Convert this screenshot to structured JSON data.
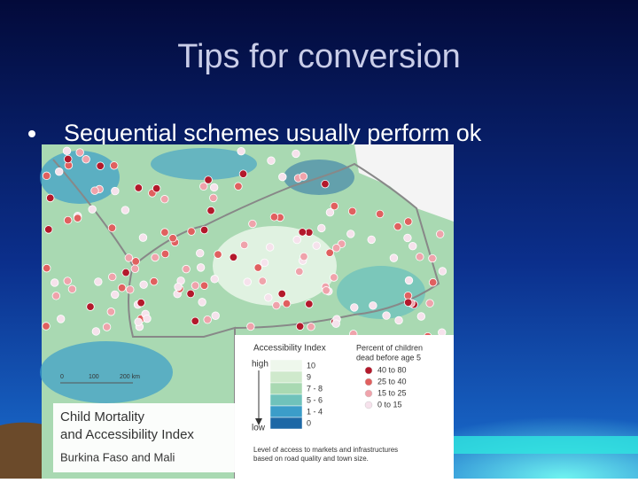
{
  "slide": {
    "title": "Tips for conversion",
    "bullets": [
      "Sequential schemes usually perform ok"
    ]
  },
  "map": {
    "title_lines": [
      "Child Mortality",
      "and Accessibility Index"
    ],
    "subtitle": "Burkina Faso and Mali",
    "scale": [
      "0",
      "100",
      "200 km"
    ],
    "accessibility": {
      "title": "Accessibility Index",
      "high": "high",
      "low": "low",
      "classes": [
        "10",
        "9",
        "7 - 8",
        "5 - 6",
        "1 - 4",
        "0"
      ],
      "colors": [
        "#eef7ec",
        "#cfe9cc",
        "#a9d9b2",
        "#6fc2bb",
        "#3b9dc9",
        "#1d68a6"
      ]
    },
    "mortality": {
      "title_lines": [
        "Percent of children",
        "dead before age 5"
      ],
      "classes": [
        "40 to 80",
        "25 to 40",
        "15 to 25",
        "0 to 15"
      ],
      "colors": [
        "#b3192b",
        "#e0605f",
        "#efa3ab",
        "#f6e2ec"
      ]
    },
    "note_lines": [
      "Level of access to markets and infrastructures",
      "based on road quality and town size."
    ]
  }
}
